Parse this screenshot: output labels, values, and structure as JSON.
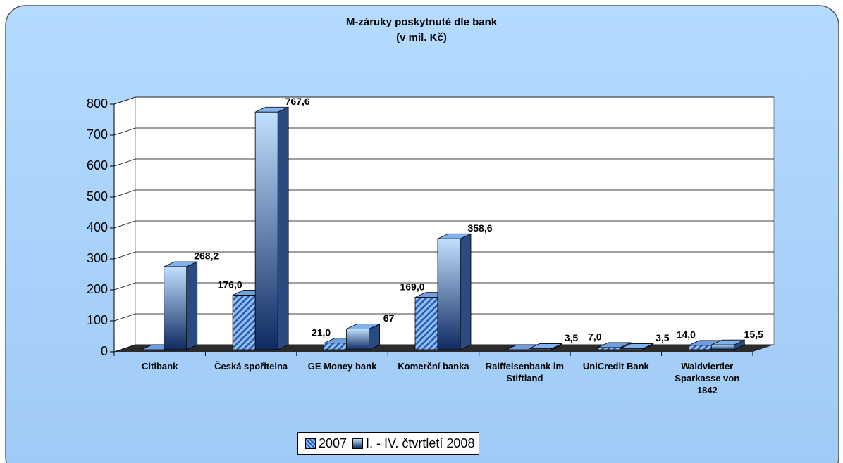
{
  "chart_data": {
    "type": "bar3d",
    "title": "M-záruky poskytnuté dle bank",
    "subtitle": "(v mil. Kč)",
    "categories": [
      "Citibank",
      "Česká spořitelna",
      "GE Money bank",
      "Komerční banka",
      "Raiffeisenbank im Stiftland",
      "UniCredit Bank",
      "Waldviertler Sparkasse von 1842"
    ],
    "series": [
      {
        "name": "2007",
        "color": "#2b58b0",
        "values": [
          0,
          176.0,
          21.0,
          169.0,
          0,
          7.0,
          14.0
        ],
        "value_labels": [
          null,
          "176,0",
          "21,0",
          "169,0",
          null,
          "7,0",
          "14,0"
        ]
      },
      {
        "name": "I. - IV. čtvrtletí 2008",
        "color": "#0e2a60",
        "values": [
          268.2,
          767.6,
          67,
          358.6,
          3.5,
          3.5,
          15.5
        ],
        "value_labels": [
          "268,2",
          "767,6",
          "67",
          "358,6",
          "3,5",
          "3,5",
          "15,5"
        ]
      }
    ],
    "ylim": [
      0,
      800
    ],
    "yticks": [
      0,
      100,
      200,
      300,
      400,
      500,
      600,
      700,
      800
    ],
    "grid": true,
    "legend": "bottom"
  }
}
